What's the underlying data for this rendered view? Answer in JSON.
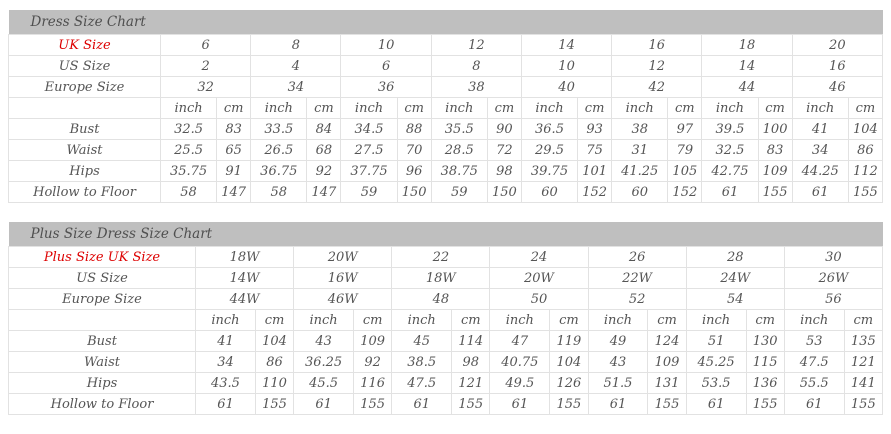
{
  "colors": {
    "title_bar_bg": "#bfbfbf",
    "title_text": "#4f4f4f",
    "body_text": "#555555",
    "highlight_red": "#dd0000",
    "cell_border": "#e2e2e2",
    "cell_bg": "#ffffff"
  },
  "chart_data": [
    {
      "type": "table",
      "title": "Dress Size Chart",
      "units": [
        "inch",
        "cm"
      ],
      "size_rows": [
        {
          "label": "UK Size",
          "highlight": true,
          "values": [
            "6",
            "8",
            "10",
            "12",
            "14",
            "16",
            "18",
            "20"
          ]
        },
        {
          "label": "US Size",
          "highlight": false,
          "values": [
            "2",
            "4",
            "6",
            "8",
            "10",
            "12",
            "14",
            "16"
          ]
        },
        {
          "label": "Europe Size",
          "highlight": false,
          "values": [
            "32",
            "34",
            "36",
            "38",
            "40",
            "42",
            "44",
            "46"
          ]
        }
      ],
      "measurement_rows": [
        {
          "label": "Bust",
          "inch": [
            "32.5",
            "33.5",
            "34.5",
            "35.5",
            "36.5",
            "38",
            "39.5",
            "41"
          ],
          "cm": [
            "83",
            "84",
            "88",
            "90",
            "93",
            "97",
            "100",
            "104"
          ]
        },
        {
          "label": "Waist",
          "inch": [
            "25.5",
            "26.5",
            "27.5",
            "28.5",
            "29.5",
            "31",
            "32.5",
            "34"
          ],
          "cm": [
            "65",
            "68",
            "70",
            "72",
            "75",
            "79",
            "83",
            "86"
          ]
        },
        {
          "label": "Hips",
          "inch": [
            "35.75",
            "36.75",
            "37.75",
            "38.75",
            "39.75",
            "41.25",
            "42.75",
            "44.25"
          ],
          "cm": [
            "91",
            "92",
            "96",
            "98",
            "101",
            "105",
            "109",
            "112"
          ]
        },
        {
          "label": "Hollow to Floor",
          "inch": [
            "58",
            "58",
            "59",
            "59",
            "60",
            "60",
            "61",
            "61"
          ],
          "cm": [
            "147",
            "147",
            "150",
            "150",
            "152",
            "152",
            "155",
            "155"
          ]
        }
      ]
    },
    {
      "type": "table",
      "title": "Plus Size Dress Size Chart",
      "units": [
        "inch",
        "cm"
      ],
      "size_rows": [
        {
          "label": "Plus Size UK Size",
          "highlight": true,
          "values": [
            "18W",
            "20W",
            "22",
            "24",
            "26",
            "28",
            "30"
          ]
        },
        {
          "label": "US Size",
          "highlight": false,
          "values": [
            "14W",
            "16W",
            "18W",
            "20W",
            "22W",
            "24W",
            "26W"
          ]
        },
        {
          "label": "Europe Size",
          "highlight": false,
          "values": [
            "44W",
            "46W",
            "48",
            "50",
            "52",
            "54",
            "56"
          ]
        }
      ],
      "measurement_rows": [
        {
          "label": "Bust",
          "inch": [
            "41",
            "43",
            "45",
            "47",
            "49",
            "51",
            "53"
          ],
          "cm": [
            "104",
            "109",
            "114",
            "119",
            "124",
            "130",
            "135"
          ]
        },
        {
          "label": "Waist",
          "inch": [
            "34",
            "36.25",
            "38.5",
            "40.75",
            "43",
            "45.25",
            "47.5"
          ],
          "cm": [
            "86",
            "92",
            "98",
            "104",
            "109",
            "115",
            "121"
          ]
        },
        {
          "label": "Hips",
          "inch": [
            "43.5",
            "45.5",
            "47.5",
            "49.5",
            "51.5",
            "53.5",
            "55.5"
          ],
          "cm": [
            "110",
            "116",
            "121",
            "126",
            "131",
            "136",
            "141"
          ]
        },
        {
          "label": "Hollow to Floor",
          "inch": [
            "61",
            "61",
            "61",
            "61",
            "61",
            "61",
            "61"
          ],
          "cm": [
            "155",
            "155",
            "155",
            "155",
            "155",
            "155",
            "155"
          ]
        }
      ]
    }
  ]
}
